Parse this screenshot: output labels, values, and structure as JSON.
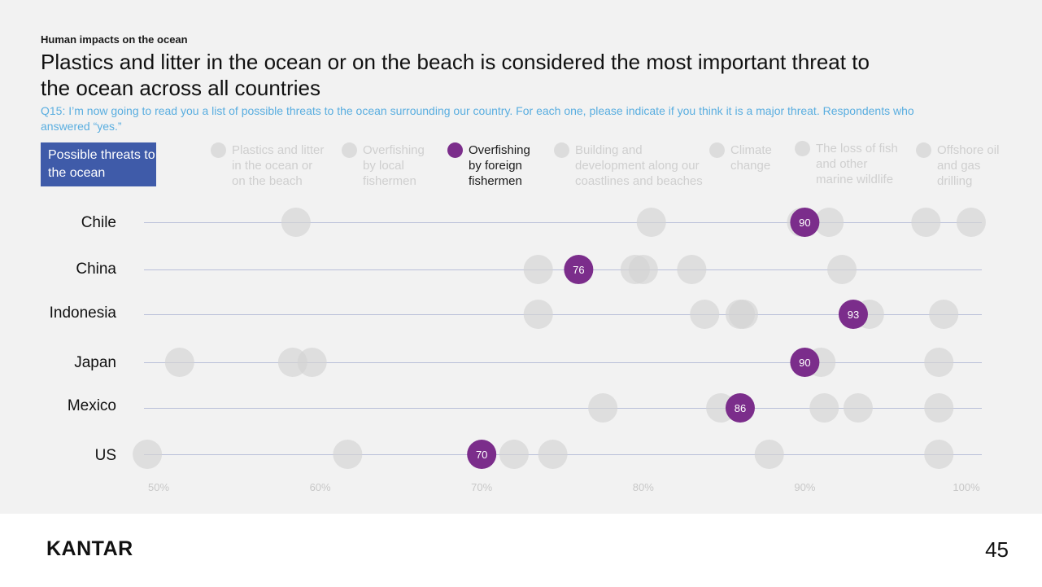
{
  "header": {
    "kicker": "Human impacts on the ocean",
    "title": "Plastics and litter in the ocean or on the beach is considered the most important threat to the ocean across all countries",
    "question": "Q15: I’m now going to read you a list of possible threats to the ocean surrounding our country. For each one, please indicate if you think it is a major threat. Respondents who answered “yes.”"
  },
  "threat_box": "Possible threats to the ocean",
  "footer": {
    "logo": "KANTAR",
    "page": "45"
  },
  "colors": {
    "highlight": "#7b2d8b",
    "inactive": "#dcdcdc",
    "header_box": "#3f5ba9",
    "question": "#5aaee0",
    "gridline": "#b9bfd9"
  },
  "chart_data": {
    "type": "scatter",
    "title": "",
    "xlabel": "",
    "ylabel": "",
    "xlim": [
      50,
      100
    ],
    "x_ticks": [
      "50%",
      "60%",
      "70%",
      "80%",
      "90%",
      "100%"
    ],
    "highlight_series": "Overfishing by foreign fishermen",
    "series_names": [
      "Plastics and litter in the ocean or on the beach",
      "Overfishing by local fishermen",
      "Overfishing by foreign fishermen",
      "Building and development along our coastlines and beaches",
      "Climate change",
      "The loss of fish and other marine wildlife",
      "Offshore oil and gas drilling"
    ],
    "legend_labels": [
      "Plastics and litter\nin the ocean or\non the beach",
      "Overfishing\nby local\nfishermen",
      "Overfishing\nby foreign\nfishermen",
      "Building and\ndevelopment along our\ncoastlines and beaches",
      "Climate\nchange",
      "The loss of fish\nand other\nmarine wildlife",
      "Offshore oil\nand gas\ndrilling"
    ],
    "categories": [
      "Chile",
      "China",
      "Indonesia",
      "Japan",
      "Mexico",
      "US"
    ],
    "highlight_values": [
      90,
      76,
      93,
      90,
      86,
      70
    ],
    "other_values": [
      [
        58.5,
        80.5,
        89.8,
        91.5,
        97.5,
        100.3
      ],
      [
        73.5,
        79.5,
        80,
        83,
        92.3
      ],
      [
        73.5,
        83.8,
        86,
        86.2,
        94,
        98.6
      ],
      [
        51.3,
        58.3,
        59.5,
        91,
        98.3
      ],
      [
        77.5,
        84.8,
        91.2,
        93.3,
        98.3
      ],
      [
        49.3,
        61.7,
        72,
        74.4,
        87.8,
        98.3
      ]
    ]
  }
}
